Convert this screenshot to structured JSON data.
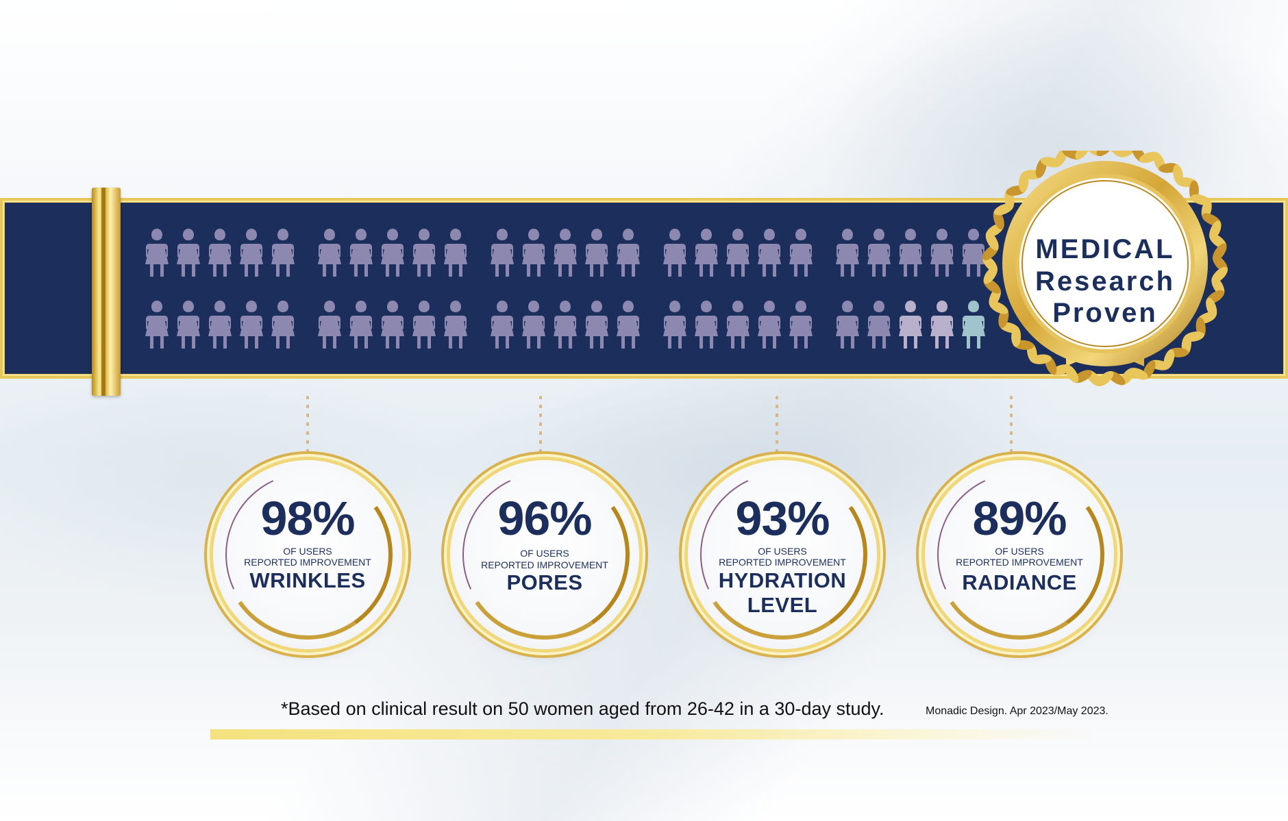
{
  "colors": {
    "navy": "#1c2e5b",
    "gold": "#d9b24e",
    "figure_purple": "#8d88b0",
    "figure_lavender": "#b9b0cc",
    "figure_teal": "#9fc4cc"
  },
  "figures": {
    "icon": "woman-icon",
    "total": 50,
    "rows": 2,
    "per_row": 25,
    "group_size": 5,
    "highlighted_last": 3
  },
  "seal": {
    "icon": "gold-laurel-seal-icon",
    "line1": "MEDICAL",
    "line2": "Research",
    "line3": "Proven"
  },
  "stats": [
    {
      "percent": "98%",
      "line1": "OF USERS",
      "line2": "REPORTED IMPROVEMENT",
      "label": "WRINKLES"
    },
    {
      "percent": "96%",
      "line1": "OF USERS",
      "line2": "REPORTED IMPROVEMENT",
      "label": "PORES"
    },
    {
      "percent": "93%",
      "line1": "OF USERS",
      "line2": "REPORTED IMPROVEMENT",
      "label": "HYDRATION LEVEL"
    },
    {
      "percent": "89%",
      "line1": "OF USERS",
      "line2": "REPORTED IMPROVEMENT",
      "label": "RADIANCE"
    }
  ],
  "footnote": "*Based on clinical result on 50 women aged from 26-42 in a 30-day study.",
  "credit": "Monadic Design. Apr 2023/May 2023."
}
